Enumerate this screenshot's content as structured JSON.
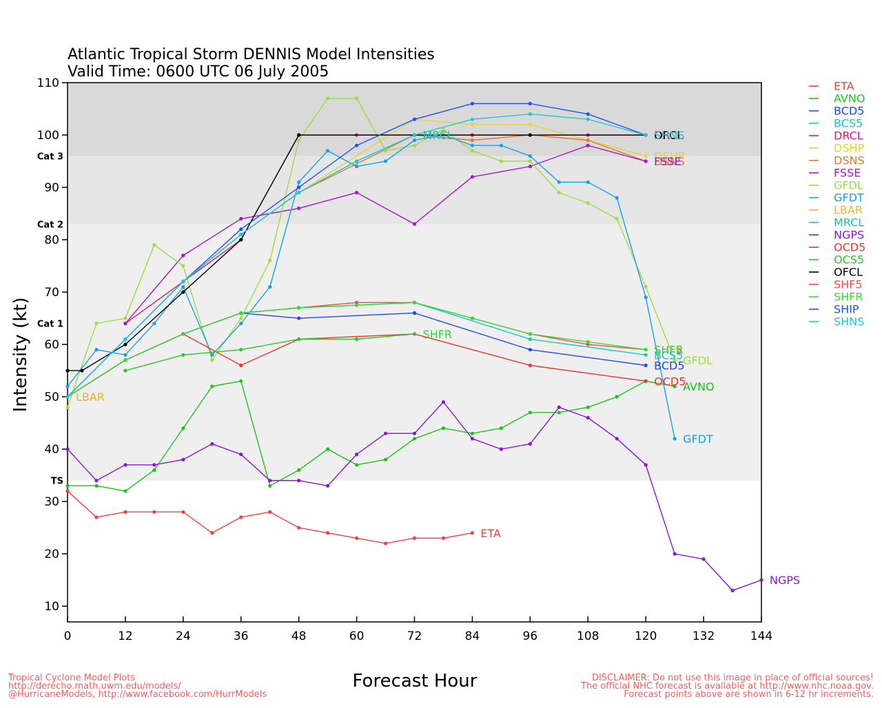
{
  "chart_data": {
    "type": "line",
    "title": "Atlantic Tropical Storm DENNIS Model Intensities",
    "subtitle": "Valid Time: 0600 UTC 06 July 2005",
    "xlabel": "Forecast Hour",
    "ylabel": "Intensity (kt)",
    "xlim": [
      0,
      144
    ],
    "ylim": [
      7,
      110
    ],
    "x_ticks": [
      0,
      12,
      24,
      36,
      48,
      60,
      72,
      84,
      96,
      108,
      120,
      132,
      144
    ],
    "y_ticks": [
      10,
      20,
      30,
      40,
      50,
      60,
      70,
      80,
      90,
      100,
      110
    ],
    "grid": false,
    "legend_position": "right",
    "category_bands": [
      {
        "label": "TS",
        "from": 34,
        "to": 64,
        "color": "#efefef"
      },
      {
        "label": "Cat 1",
        "from": 64,
        "to": 83,
        "color": "#efefef"
      },
      {
        "label": "Cat 2",
        "from": 83,
        "to": 96,
        "color": "#e6e6e6"
      },
      {
        "label": "Cat 3",
        "from": 96,
        "to": 110,
        "color": "#d9d9d9"
      }
    ],
    "series": [
      {
        "name": "ETA",
        "color": "#ff3c3c",
        "end_label": "ETA",
        "x": [
          0,
          6,
          12,
          18,
          24,
          30,
          36,
          42,
          48,
          54,
          60,
          66,
          72,
          78,
          84
        ],
        "y": [
          32,
          27,
          28,
          28,
          28,
          24,
          27,
          28,
          25,
          24,
          23,
          22,
          23,
          23,
          24
        ]
      },
      {
        "name": "AVNO",
        "color": "#14c814",
        "end_label": "AVNO",
        "x": [
          0,
          6,
          12,
          18,
          24,
          30,
          36,
          42,
          48,
          54,
          60,
          66,
          72,
          78,
          84,
          90,
          96,
          102,
          108,
          114,
          120,
          126
        ],
        "y": [
          33,
          33,
          32,
          36,
          44,
          52,
          53,
          33,
          36,
          40,
          37,
          38,
          42,
          44,
          43,
          44,
          47,
          47,
          48,
          50,
          53,
          52
        ]
      },
      {
        "name": "BCD5",
        "color": "#1e46ff",
        "end_label": "BCD5",
        "x": [
          0,
          12,
          24,
          36,
          48,
          72,
          96,
          120
        ],
        "y": [
          50,
          57,
          62,
          66,
          65,
          66,
          59,
          56
        ]
      },
      {
        "name": "BCS5",
        "color": "#14c8c8",
        "end_label": "BCS5",
        "x": [
          0,
          12,
          24,
          36,
          48,
          72,
          96,
          120
        ],
        "y": [
          50,
          57,
          62,
          66,
          67,
          68,
          61,
          58
        ]
      },
      {
        "name": "DRCL",
        "color": "#e6147a",
        "end_label": "DRCL",
        "x": [
          12,
          24,
          36,
          48,
          60,
          72,
          84,
          96,
          108,
          120
        ],
        "y": [
          64,
          72,
          80,
          100,
          100,
          100,
          100,
          100,
          100,
          100
        ]
      },
      {
        "name": "DSHP",
        "color": "#e6d232",
        "end_label": "DSHP",
        "x": [
          0,
          12,
          24,
          36,
          48,
          72,
          84,
          96,
          108,
          120
        ],
        "y": [
          50,
          61,
          72,
          81,
          89,
          103,
          102,
          102,
          99,
          96
        ]
      },
      {
        "name": "DSNS",
        "color": "#e67828",
        "end_label": "DSNS",
        "x": [
          0,
          12,
          24,
          36,
          48,
          72,
          84,
          96,
          108,
          120
        ],
        "y": [
          50,
          61,
          72,
          81,
          89,
          100,
          99,
          100,
          99,
          95
        ]
      },
      {
        "name": "FSSE",
        "color": "#aa14c8",
        "end_label": "FSSE",
        "x": [
          12,
          24,
          36,
          48,
          60,
          72,
          84,
          96,
          108,
          120
        ],
        "y": [
          64,
          77,
          84,
          86,
          89,
          83,
          92,
          94,
          98,
          95
        ]
      },
      {
        "name": "GFDL",
        "color": "#a0dc3c",
        "end_label": "GFDL",
        "x": [
          0,
          6,
          12,
          18,
          24,
          30,
          36,
          42,
          48,
          54,
          60,
          66,
          72,
          78,
          84,
          90,
          96,
          102,
          108,
          114,
          120,
          126
        ],
        "y": [
          48,
          64,
          65,
          79,
          75,
          57,
          65,
          76,
          99,
          107,
          107,
          97,
          98,
          101,
          97,
          95,
          95,
          89,
          87,
          84,
          71,
          57
        ]
      },
      {
        "name": "GFDT",
        "color": "#14a0f0",
        "end_label": "GFDT",
        "x": [
          0,
          6,
          12,
          18,
          24,
          30,
          36,
          42,
          48,
          54,
          60,
          66,
          72,
          78,
          84,
          90,
          96,
          102,
          108,
          114,
          120,
          126
        ],
        "y": [
          52,
          59,
          58,
          64,
          71,
          58,
          64,
          71,
          91,
          97,
          94,
          95,
          99,
          100,
          98,
          98,
          96,
          91,
          91,
          88,
          69,
          42
        ]
      },
      {
        "name": "LBAR",
        "color": "#f0b428",
        "end_label": "LBAR",
        "x": [
          0
        ],
        "y": [
          50
        ]
      },
      {
        "name": "MRCL",
        "color": "#14c8aa",
        "end_label": "MRCL",
        "x": [
          0,
          12,
          24,
          36,
          48,
          60,
          72
        ],
        "y": [
          50,
          61,
          72,
          81,
          89,
          95,
          100
        ]
      },
      {
        "name": "NGPS",
        "color": "#8c14dc",
        "end_label": "NGPS",
        "x": [
          0,
          6,
          12,
          18,
          24,
          30,
          36,
          42,
          48,
          54,
          60,
          66,
          72,
          78,
          84,
          90,
          96,
          102,
          108,
          114,
          120,
          126,
          132,
          138,
          144
        ],
        "y": [
          40,
          34,
          37,
          37,
          38,
          41,
          39,
          34,
          34,
          33,
          39,
          43,
          43,
          49,
          42,
          40,
          41,
          48,
          46,
          42,
          37,
          20,
          19,
          13,
          15
        ]
      },
      {
        "name": "OCD5",
        "color": "#f03232",
        "end_label": "OCD5",
        "x": [
          0,
          12,
          24,
          36,
          48,
          72,
          96,
          120
        ],
        "y": [
          50,
          57,
          62,
          56,
          61,
          62,
          56,
          53
        ]
      },
      {
        "name": "OCS5",
        "color": "#28c828",
        "end_label": "",
        "x": [
          12,
          24,
          36,
          48,
          60,
          72
        ],
        "y": [
          55,
          58,
          59,
          61,
          61,
          62
        ]
      },
      {
        "name": "OFCL",
        "color": "#000000",
        "end_label": "OFCL",
        "x": [
          0,
          3,
          12,
          24,
          36,
          48,
          72,
          96,
          120
        ],
        "y": [
          55,
          55,
          60,
          70,
          80,
          100,
          100,
          100,
          100
        ]
      },
      {
        "name": "SHF5",
        "color": "#ff4646",
        "end_label": "SHF5",
        "x": [
          0,
          12,
          24,
          36,
          48,
          60,
          72,
          84,
          96,
          108,
          120
        ],
        "y": [
          50,
          57,
          62,
          66,
          67,
          68,
          68,
          65,
          62,
          60,
          59
        ]
      },
      {
        "name": "SHFR",
        "color": "#32dc32",
        "end_label": "SHFR",
        "x": [
          0,
          12,
          24,
          36,
          48,
          60,
          72,
          84,
          96,
          108,
          120
        ],
        "y": [
          50,
          57,
          62,
          66,
          67,
          67.5,
          68,
          65,
          62,
          60.5,
          59
        ]
      },
      {
        "name": "SHIP",
        "color": "#1e50ff",
        "end_label": "",
        "x": [
          0,
          12,
          24,
          36,
          48,
          60,
          72,
          84,
          96,
          108,
          120
        ],
        "y": [
          50,
          61,
          72,
          82,
          90,
          98,
          103,
          106,
          106,
          104,
          100
        ]
      },
      {
        "name": "SHNS",
        "color": "#1ec8d2",
        "end_label": "SHNS",
        "x": [
          0,
          12,
          24,
          36,
          48,
          60,
          72,
          84,
          96,
          108,
          120
        ],
        "y": [
          50,
          61,
          72,
          81,
          89,
          95,
          100,
          103,
          104,
          103,
          100
        ]
      }
    ],
    "inline_labels": [
      {
        "text": "SHFR",
        "color": "#32dc32",
        "x": 72,
        "y": 62
      },
      {
        "text": "MRCL",
        "color": "#14c8aa",
        "x": 72,
        "y": 100
      },
      {
        "text": "LBAR",
        "color": "#f0b428",
        "x": 0,
        "y": 50
      }
    ]
  },
  "footer": {
    "left_line1": "Tropical Cyclone Model Plots",
    "left_line2": "http://derecho.math.uwm.edu/models/",
    "left_line3": "@HurricaneModels, http://www.facebook.com/HurrModels",
    "right_line1": "DISCLAIMER: Do not use this image in place of official sources!",
    "right_line2": "The official NHC forecast is available at http://www.nhc.noaa.gov.",
    "right_line3": "Forecast points above are shown in 6-12 hr increments."
  }
}
